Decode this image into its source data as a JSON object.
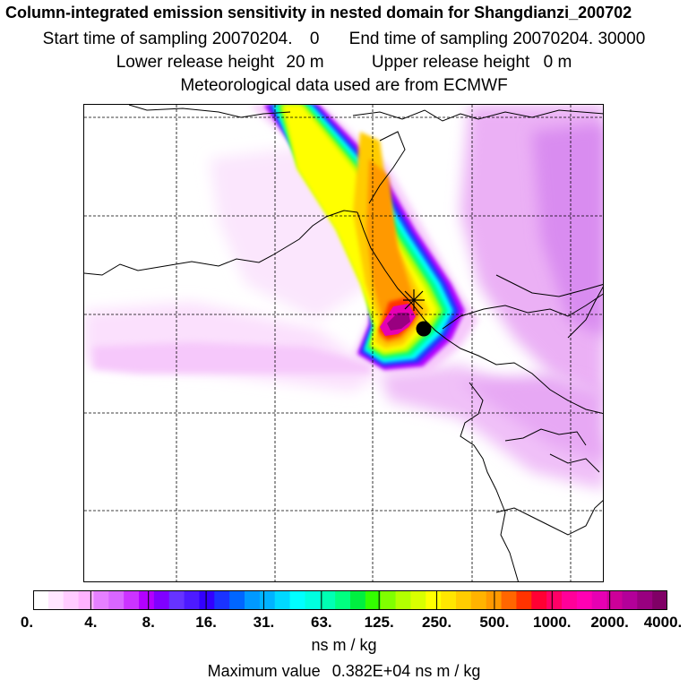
{
  "header": {
    "title": "Column-integrated emission sensitivity in nested domain for Shangdianzi_200702",
    "start_label": "Start time of sampling",
    "start_value": "20070204.",
    "start_time": "0",
    "end_label": "End time of sampling",
    "end_value": "20070204. 30000",
    "lower_label": "Lower release height",
    "lower_value": "20 m",
    "upper_label": "Upper release height",
    "upper_value": "0 m",
    "met_line": "Meteorological data used are from ECMWF"
  },
  "legend": {
    "tick_labels": [
      "0.",
      "4.",
      "8.",
      "16.",
      "31.",
      "63.",
      "125.",
      "250.",
      "500.",
      "1000.",
      "2000.",
      "4000."
    ],
    "colors": [
      "#ffffff",
      "#ffe6ff",
      "#ffccff",
      "#ffb3ff",
      "#e680ff",
      "#d966ff",
      "#cc33ff",
      "#b300ff",
      "#8000ff",
      "#6633ff",
      "#4d1aff",
      "#3300ff",
      "#1a33ff",
      "#0066ff",
      "#0099ff",
      "#00b3ff",
      "#00d9ff",
      "#00ffff",
      "#00ffe0",
      "#00ffb3",
      "#00ff80",
      "#00f040",
      "#33ff00",
      "#80ff00",
      "#b3ff00",
      "#d9ff00",
      "#ffff00",
      "#ffe600",
      "#ffcc00",
      "#ffb300",
      "#ff9900",
      "#ff6600",
      "#ff3300",
      "#ff0033",
      "#ff0066",
      "#ff0099",
      "#ff00b3",
      "#e600b3",
      "#cc0099",
      "#b30099",
      "#990080",
      "#800066"
    ],
    "units": "ns m / kg",
    "max_label": "Maximum value",
    "max_value": "0.382E+04",
    "max_units": "ns m / kg"
  },
  "map": {
    "station_marker": "x-marker-icon",
    "release_marker": "black-dot-icon"
  }
}
